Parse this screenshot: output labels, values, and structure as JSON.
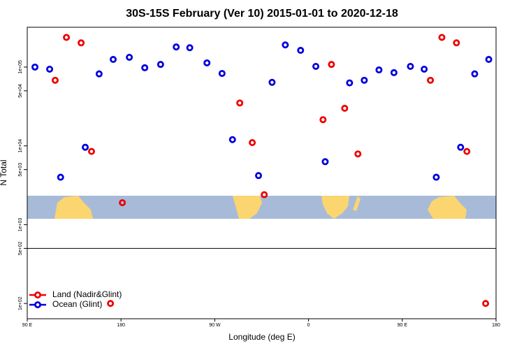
{
  "chart_data": {
    "type": "scatter",
    "title": "30S-15S February (Ver 10)   2015-01-01 to 2020-12-18",
    "xlabel": "Longitude (deg E)",
    "ylabel": "N Total",
    "log_y": true,
    "legend": "bottom-left",
    "reference_line": 500,
    "xlim": [
      90,
      540
    ],
    "ylim": [
      64,
      320000
    ],
    "xticks": [
      {
        "value": 90,
        "label": "90 E"
      },
      180,
      {
        "value": 270,
        "label": "90 W"
      },
      {
        "value": 360,
        "label": "0"
      },
      {
        "value": 450,
        "label": "90 E"
      },
      {
        "value": 540,
        "label": "180"
      }
    ],
    "yticks": [
      {
        "value": 100000,
        "label": "1e+05"
      },
      {
        "value": 50000,
        "label": "5e+04"
      },
      {
        "value": 10000,
        "label": "1e+04"
      },
      {
        "value": 5000,
        "label": "5e+03"
      },
      {
        "value": 1000,
        "label": "1e+03"
      },
      {
        "value": 500,
        "label": "5e+02"
      },
      {
        "value": 100,
        "label": "1e+02"
      }
    ],
    "series": [
      {
        "name": "Land (Nadir&Glint)",
        "color": "#ee0000",
        "x": [
          127.6,
          141.7,
          116.8,
          151.7,
          181.3,
          294,
          306,
          317.5,
          373.9,
          382,
          394.7,
          407.4,
          488,
          502,
          477,
          512,
          169.9,
          530
        ],
        "values": [
          238000,
          203000,
          68000,
          8500,
          1900,
          35000,
          11000,
          2400,
          21500,
          108000,
          30000,
          7900,
          238000,
          203000,
          68000,
          8500,
          100,
          100
        ]
      },
      {
        "name": "Ocean (Glint)",
        "color": "#0000dd",
        "x": [
          97.4,
          111.5,
          122,
          145.7,
          159,
          172.5,
          188,
          202.8,
          218,
          233,
          246,
          262.5,
          277,
          287,
          312,
          325,
          337.7,
          352.4,
          367,
          376,
          399.4,
          413.5,
          427.6,
          442,
          457.8,
          471,
          482.6,
          506,
          519.5,
          533
        ],
        "values": [
          100000,
          94000,
          4000,
          9600,
          82000,
          125000,
          133000,
          98000,
          108000,
          180000,
          176000,
          113000,
          83000,
          12000,
          4200,
          64000,
          191000,
          163000,
          102000,
          6300,
          63000,
          68000,
          92000,
          85000,
          102000,
          94000,
          4000,
          9600,
          82000,
          125000
        ]
      }
    ]
  }
}
